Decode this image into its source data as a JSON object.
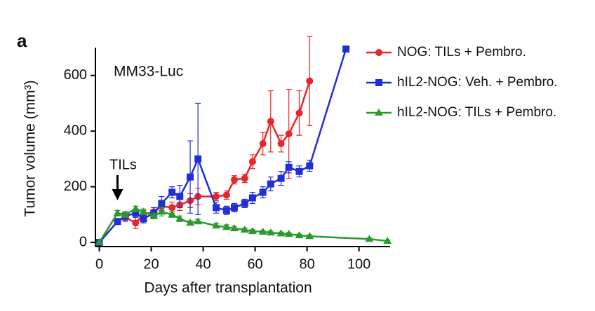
{
  "chart_data": {
    "type": "line",
    "panel_label": "a",
    "annotation": "MM33-Luc",
    "arrow_label": "TILs",
    "arrow_x": 7,
    "xlabel": "Days after transplantation",
    "ylabel": "Tumor volume (mm³)",
    "xlim": [
      -1.5,
      112
    ],
    "ylim": [
      -15,
      700
    ],
    "xticks": [
      0,
      20,
      40,
      60,
      80,
      100
    ],
    "yticks": [
      0,
      200,
      400,
      600
    ],
    "legend": "upper right",
    "series": [
      {
        "name": "NOG: TILs + Pembro.",
        "color": "#e8262a",
        "marker": "circle",
        "x": [
          0,
          7,
          10,
          14,
          17,
          21,
          24,
          28,
          31,
          35,
          38,
          45,
          49,
          52,
          56,
          59,
          63,
          66,
          70,
          73,
          77,
          81
        ],
        "values": [
          0,
          75,
          90,
          70,
          100,
          110,
          130,
          125,
          135,
          150,
          165,
          165,
          170,
          225,
          230,
          290,
          355,
          435,
          355,
          390,
          465,
          580
        ],
        "errors": [
          0,
          10,
          15,
          20,
          15,
          15,
          15,
          20,
          20,
          25,
          30,
          15,
          15,
          15,
          15,
          25,
          40,
          110,
          30,
          160,
          80,
          160
        ]
      },
      {
        "name": "hIL2-NOG: Veh. + Pembro.",
        "color": "#1f2fd6",
        "marker": "square",
        "x": [
          0,
          7,
          10,
          14,
          17,
          21,
          24,
          28,
          31,
          35,
          38,
          45,
          49,
          52,
          56,
          59,
          63,
          66,
          70,
          73,
          77,
          81,
          95
        ],
        "values": [
          0,
          75,
          95,
          105,
          85,
          105,
          140,
          180,
          165,
          235,
          300,
          125,
          115,
          125,
          140,
          160,
          180,
          210,
          230,
          270,
          255,
          275,
          695
        ],
        "errors": [
          0,
          10,
          15,
          15,
          15,
          20,
          25,
          20,
          40,
          130,
          200,
          20,
          15,
          15,
          15,
          20,
          20,
          25,
          25,
          20,
          20,
          20,
          0
        ]
      },
      {
        "name": "hIL2-NOG: TILs + Pembro.",
        "color": "#2a9a2a",
        "marker": "triangle",
        "x": [
          0,
          7,
          10,
          14,
          17,
          21,
          24,
          28,
          31,
          35,
          38,
          45,
          49,
          52,
          56,
          59,
          63,
          66,
          70,
          73,
          77,
          81,
          104,
          111
        ],
        "values": [
          0,
          105,
          100,
          120,
          110,
          95,
          110,
          100,
          85,
          70,
          75,
          60,
          55,
          50,
          45,
          40,
          38,
          35,
          32,
          30,
          25,
          22,
          12,
          5
        ],
        "errors": [
          0,
          10,
          10,
          10,
          10,
          10,
          15,
          10,
          10,
          8,
          8,
          8,
          8,
          8,
          6,
          6,
          6,
          6,
          5,
          5,
          5,
          5,
          4,
          3
        ]
      }
    ]
  }
}
